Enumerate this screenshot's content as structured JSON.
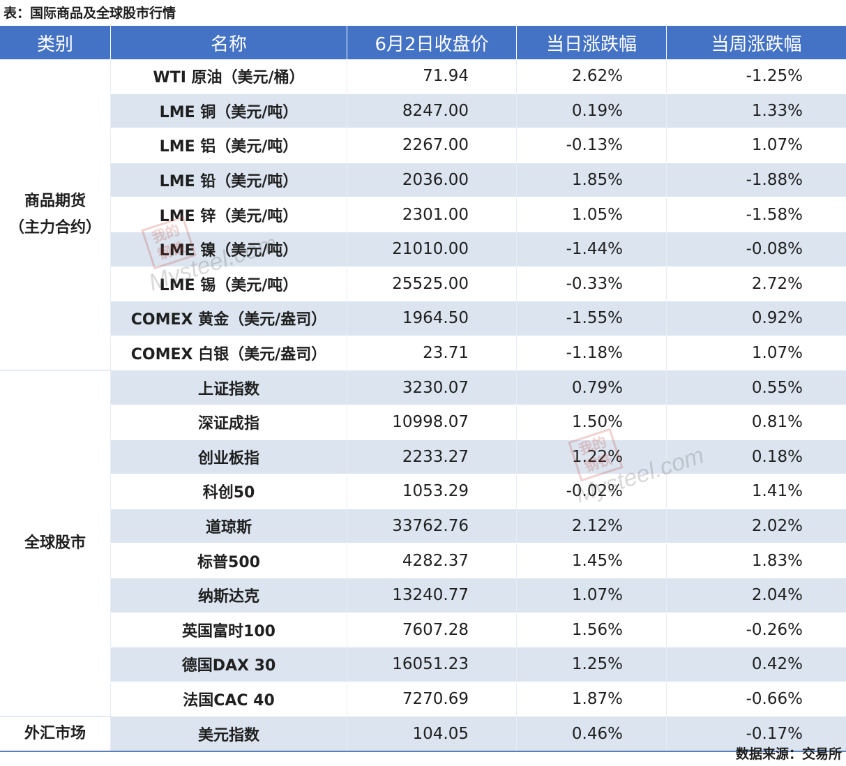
{
  "caption": "表：国际商品及全球股市行情",
  "source": "数据来源：交易所",
  "watermark": {
    "stamp": "我的钢铁",
    "text": "Mysteel.com"
  },
  "colors": {
    "header_bg": "#4472c4",
    "alt_row": "#dbe4ef",
    "up": "#c00000",
    "down": "#548235"
  },
  "headers": [
    "类别",
    "名称",
    "6月2日收盘价",
    "当日涨跌幅",
    "当周涨跌幅"
  ],
  "categories": [
    "商品期货\n（主力合约）",
    "全球股市",
    "外汇市场"
  ],
  "rows": [
    {
      "name": "WTI 原油（美元/桶）",
      "price": "71.94",
      "daily": "2.62%",
      "weekly": "-1.25%"
    },
    {
      "name": "LME 铜（美元/吨）",
      "price": "8247.00",
      "daily": "0.19%",
      "weekly": "1.33%"
    },
    {
      "name": "LME 铝（美元/吨）",
      "price": "2267.00",
      "daily": "-0.13%",
      "weekly": "1.07%"
    },
    {
      "name": "LME 铅（美元/吨）",
      "price": "2036.00",
      "daily": "1.85%",
      "weekly": "-1.88%"
    },
    {
      "name": "LME 锌（美元/吨）",
      "price": "2301.00",
      "daily": "1.05%",
      "weekly": "-1.58%"
    },
    {
      "name": "LME 镍（美元/吨）",
      "price": "21010.00",
      "daily": "-1.44%",
      "weekly": "-0.08%"
    },
    {
      "name": "LME 锡（美元/吨）",
      "price": "25525.00",
      "daily": "-0.33%",
      "weekly": "2.72%"
    },
    {
      "name": "COMEX 黄金（美元/盎司）",
      "price": "1964.50",
      "daily": "-1.55%",
      "weekly": "0.92%"
    },
    {
      "name": "COMEX 白银（美元/盎司）",
      "price": "23.71",
      "daily": "-1.18%",
      "weekly": "1.07%"
    },
    {
      "name": "上证指数",
      "price": "3230.07",
      "daily": "0.79%",
      "weekly": "0.55%"
    },
    {
      "name": "深证成指",
      "price": "10998.07",
      "daily": "1.50%",
      "weekly": "0.81%"
    },
    {
      "name": "创业板指",
      "price": "2233.27",
      "daily": "1.22%",
      "weekly": "0.18%"
    },
    {
      "name": "科创50",
      "price": "1053.29",
      "daily": "-0.02%",
      "weekly": "1.41%"
    },
    {
      "name": "道琼斯",
      "price": "33762.76",
      "daily": "2.12%",
      "weekly": "2.02%"
    },
    {
      "name": "标普500",
      "price": "4282.37",
      "daily": "1.45%",
      "weekly": "1.83%"
    },
    {
      "name": "纳斯达克",
      "price": "13240.77",
      "daily": "1.07%",
      "weekly": "2.04%"
    },
    {
      "name": "英国富时100",
      "price": "7607.28",
      "daily": "1.56%",
      "weekly": "-0.26%"
    },
    {
      "name": "德国DAX 30",
      "price": "16051.23",
      "daily": "1.25%",
      "weekly": "0.42%"
    },
    {
      "name": "法国CAC 40",
      "price": "7270.69",
      "daily": "1.87%",
      "weekly": "-0.66%"
    },
    {
      "name": "美元指数",
      "price": "104.05",
      "daily": "0.46%",
      "weekly": "-0.17%"
    }
  ]
}
